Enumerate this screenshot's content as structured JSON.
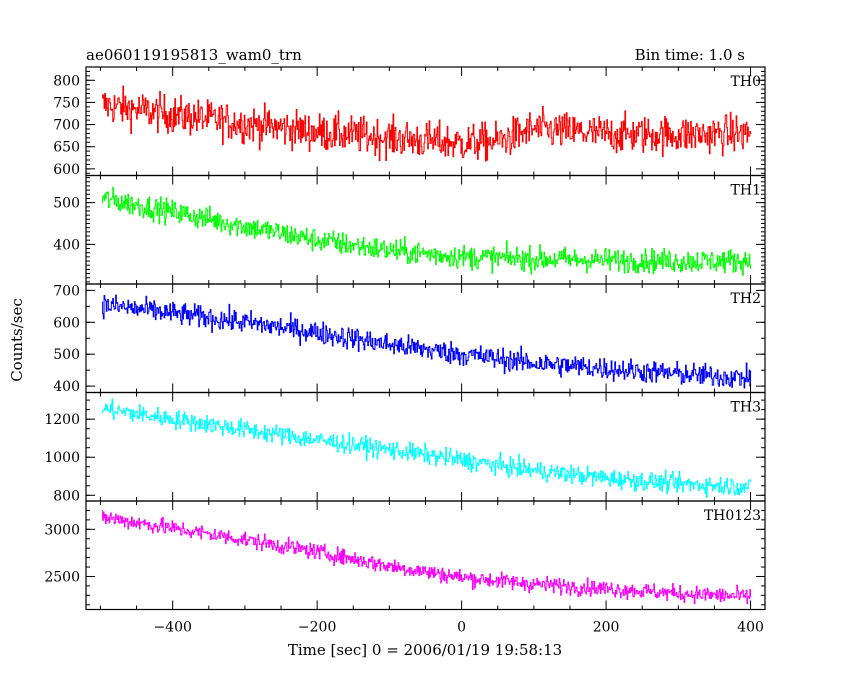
{
  "chart_data": {
    "type": "line",
    "title": "ae060119195813_wam0_trn",
    "subtitle": "Bin time: 1.0 s",
    "xlabel": "Time [sec] 0 = 2006/01/19 19:58:13",
    "ylabel": "Counts/sec",
    "xlim": [
      -520,
      420
    ],
    "x_ticks": [
      -400,
      -200,
      0,
      200,
      400
    ],
    "x_range": [
      -498,
      400
    ],
    "grid": false,
    "panels": [
      {
        "name": "TH0",
        "color": "#ff0000",
        "ylim": [
          585,
          830
        ],
        "y_ticks": [
          600,
          650,
          700,
          750,
          800
        ],
        "trend": {
          "x": [
            -498,
            -400,
            -300,
            -200,
            -100,
            0,
            50,
            100,
            200,
            300,
            400
          ],
          "y": [
            745,
            722,
            702,
            683,
            670,
            658,
            662,
            690,
            678,
            677,
            680
          ]
        },
        "noise": 30
      },
      {
        "name": "TH1",
        "color": "#00ff00",
        "ylim": [
          305,
          565
        ],
        "y_ticks": [
          400,
          500
        ],
        "trend": {
          "x": [
            -498,
            -400,
            -300,
            -200,
            -100,
            0,
            100,
            200,
            300,
            400
          ],
          "y": [
            510,
            478,
            443,
            410,
            385,
            370,
            365,
            362,
            360,
            360
          ]
        },
        "noise": 20
      },
      {
        "name": "TH2",
        "color": "#0000ff",
        "ylim": [
          380,
          720
        ],
        "y_ticks": [
          400,
          500,
          600,
          700
        ],
        "trend": {
          "x": [
            -498,
            -400,
            -300,
            -200,
            -100,
            0,
            100,
            200,
            300,
            400
          ],
          "y": [
            655,
            628,
            600,
            568,
            530,
            500,
            472,
            455,
            438,
            425
          ]
        },
        "noise": 25
      },
      {
        "name": "TH3",
        "color": "#00ffff",
        "ylim": [
          770,
          1340
        ],
        "y_ticks": [
          800,
          1000,
          1200
        ],
        "trend": {
          "x": [
            -498,
            -400,
            -300,
            -200,
            -100,
            0,
            100,
            200,
            300,
            400
          ],
          "y": [
            1255,
            1200,
            1145,
            1090,
            1040,
            985,
            930,
            890,
            860,
            845
          ]
        },
        "noise": 35
      },
      {
        "name": "TH0123",
        "color": "#ff00ff",
        "ylim": [
          2150,
          3300
        ],
        "y_ticks": [
          2500,
          3000
        ],
        "trend": {
          "x": [
            -498,
            -400,
            -300,
            -200,
            -100,
            0,
            100,
            200,
            300,
            400
          ],
          "y": [
            3130,
            3010,
            2890,
            2760,
            2610,
            2490,
            2420,
            2370,
            2320,
            2285
          ]
        },
        "noise": 60
      }
    ]
  }
}
